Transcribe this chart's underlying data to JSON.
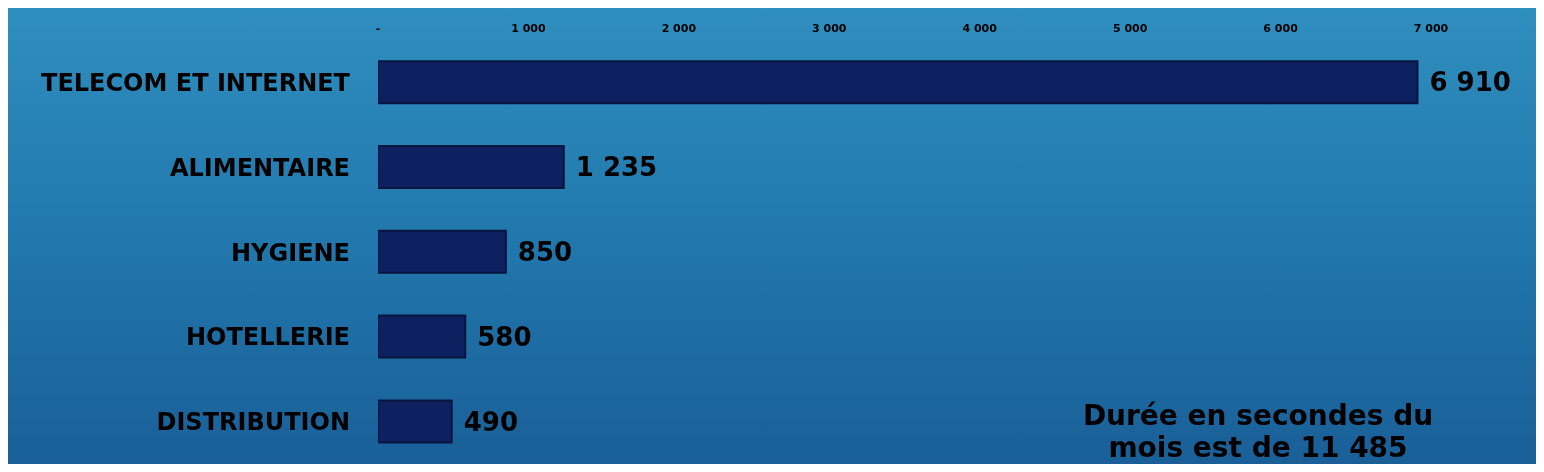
{
  "chart_data": {
    "type": "bar",
    "orientation": "horizontal",
    "categories": [
      "TELECOM ET INTERNET",
      "ALIMENTAIRE",
      "HYGIENE",
      "HOTELLERIE",
      "DISTRIBUTION"
    ],
    "values": [
      6910,
      1235,
      850,
      580,
      490
    ],
    "value_labels": [
      "6 910",
      "1 235",
      "850",
      "580",
      "490"
    ],
    "color": "#0d2160",
    "xlim": [
      0,
      7000
    ],
    "xticks": [
      {
        "value": 0,
        "label": "-"
      },
      {
        "value": 1000,
        "label": "1 000"
      },
      {
        "value": 2000,
        "label": "2 000"
      },
      {
        "value": 3000,
        "label": "3 000"
      },
      {
        "value": 4000,
        "label": "4 000"
      },
      {
        "value": 5000,
        "label": "5 000"
      },
      {
        "value": 6000,
        "label": "6 000"
      },
      {
        "value": 7000,
        "label": "7 000"
      }
    ],
    "grid": false,
    "annotations": [
      "Durée en secondes du mois est de 11 485"
    ]
  }
}
